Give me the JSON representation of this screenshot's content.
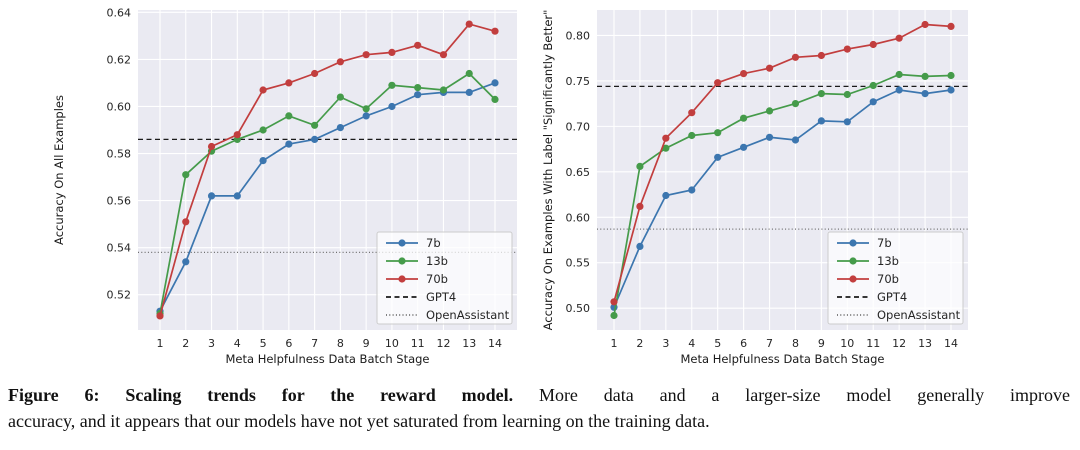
{
  "caption": {
    "line1_bold": "Figure 6: Scaling trends for the reward model.",
    "line1_rest": "More data and a larger-size model generally improve",
    "line2": "accuracy, and it appears that our models have not yet saturated from learning on the training data."
  },
  "colors": {
    "plot_bg": "#eaeaf2",
    "grid": "#ffffff",
    "tick_text": "#262626",
    "axis_label_text": "#1a1a1a",
    "legend_bg": "#f4f4f9",
    "legend_border": "#cccccc"
  },
  "chart_data": [
    {
      "type": "line",
      "title": "",
      "xlabel": "Meta Helpfulness Data Batch Stage",
      "ylabel": "Accuracy On All Examples",
      "x": [
        1,
        2,
        3,
        4,
        5,
        6,
        7,
        8,
        9,
        10,
        11,
        12,
        13,
        14
      ],
      "yticks": [
        0.52,
        0.54,
        0.56,
        0.58,
        0.6,
        0.62,
        0.64
      ],
      "ylim": [
        0.505,
        0.641
      ],
      "grid": true,
      "legend_position": "lower right",
      "series": [
        {
          "name": "7b",
          "color": "#3c76af",
          "marker": "circle",
          "values": [
            0.513,
            0.534,
            0.562,
            0.562,
            0.577,
            0.584,
            0.586,
            0.591,
            0.596,
            0.6,
            0.605,
            0.606,
            0.606,
            0.61
          ]
        },
        {
          "name": "13b",
          "color": "#459b4a",
          "marker": "circle",
          "values": [
            0.512,
            0.571,
            0.581,
            0.586,
            0.59,
            0.596,
            0.592,
            0.604,
            0.599,
            0.609,
            0.608,
            0.607,
            0.614,
            0.603
          ]
        },
        {
          "name": "70b",
          "color": "#c23e3e",
          "marker": "circle",
          "values": [
            0.511,
            0.551,
            0.583,
            0.588,
            0.607,
            0.61,
            0.614,
            0.619,
            0.622,
            0.623,
            0.626,
            0.622,
            0.635,
            0.632
          ]
        }
      ],
      "hlines": [
        {
          "name": "GPT4",
          "value": 0.586,
          "style": "dashed",
          "color": "#1a1a1a"
        },
        {
          "name": "OpenAssistant",
          "value": 0.538,
          "style": "dotted",
          "color": "#6e6e6e"
        }
      ]
    },
    {
      "type": "line",
      "title": "",
      "xlabel": "Meta Helpfulness Data Batch Stage",
      "ylabel": "Accuracy On Examples With Label \"Significantly Better\"",
      "x": [
        1,
        2,
        3,
        4,
        5,
        6,
        7,
        8,
        9,
        10,
        11,
        12,
        13,
        14
      ],
      "yticks": [
        0.5,
        0.55,
        0.6,
        0.65,
        0.7,
        0.75,
        0.8
      ],
      "ylim": [
        0.476,
        0.828
      ],
      "grid": true,
      "legend_position": "lower right",
      "series": [
        {
          "name": "7b",
          "color": "#3c76af",
          "marker": "circle",
          "values": [
            0.501,
            0.568,
            0.624,
            0.63,
            0.666,
            0.677,
            0.688,
            0.685,
            0.706,
            0.705,
            0.727,
            0.74,
            0.736,
            0.74
          ]
        },
        {
          "name": "13b",
          "color": "#459b4a",
          "marker": "circle",
          "values": [
            0.492,
            0.656,
            0.676,
            0.69,
            0.693,
            0.709,
            0.717,
            0.725,
            0.736,
            0.735,
            0.745,
            0.757,
            0.755,
            0.756
          ]
        },
        {
          "name": "70b",
          "color": "#c23e3e",
          "marker": "circle",
          "values": [
            0.507,
            0.612,
            0.687,
            0.715,
            0.748,
            0.758,
            0.764,
            0.776,
            0.778,
            0.785,
            0.79,
            0.797,
            0.812,
            0.81
          ]
        }
      ],
      "hlines": [
        {
          "name": "GPT4",
          "value": 0.744,
          "style": "dashed",
          "color": "#1a1a1a"
        },
        {
          "name": "OpenAssistant",
          "value": 0.587,
          "style": "dotted",
          "color": "#6e6e6e"
        }
      ]
    }
  ]
}
